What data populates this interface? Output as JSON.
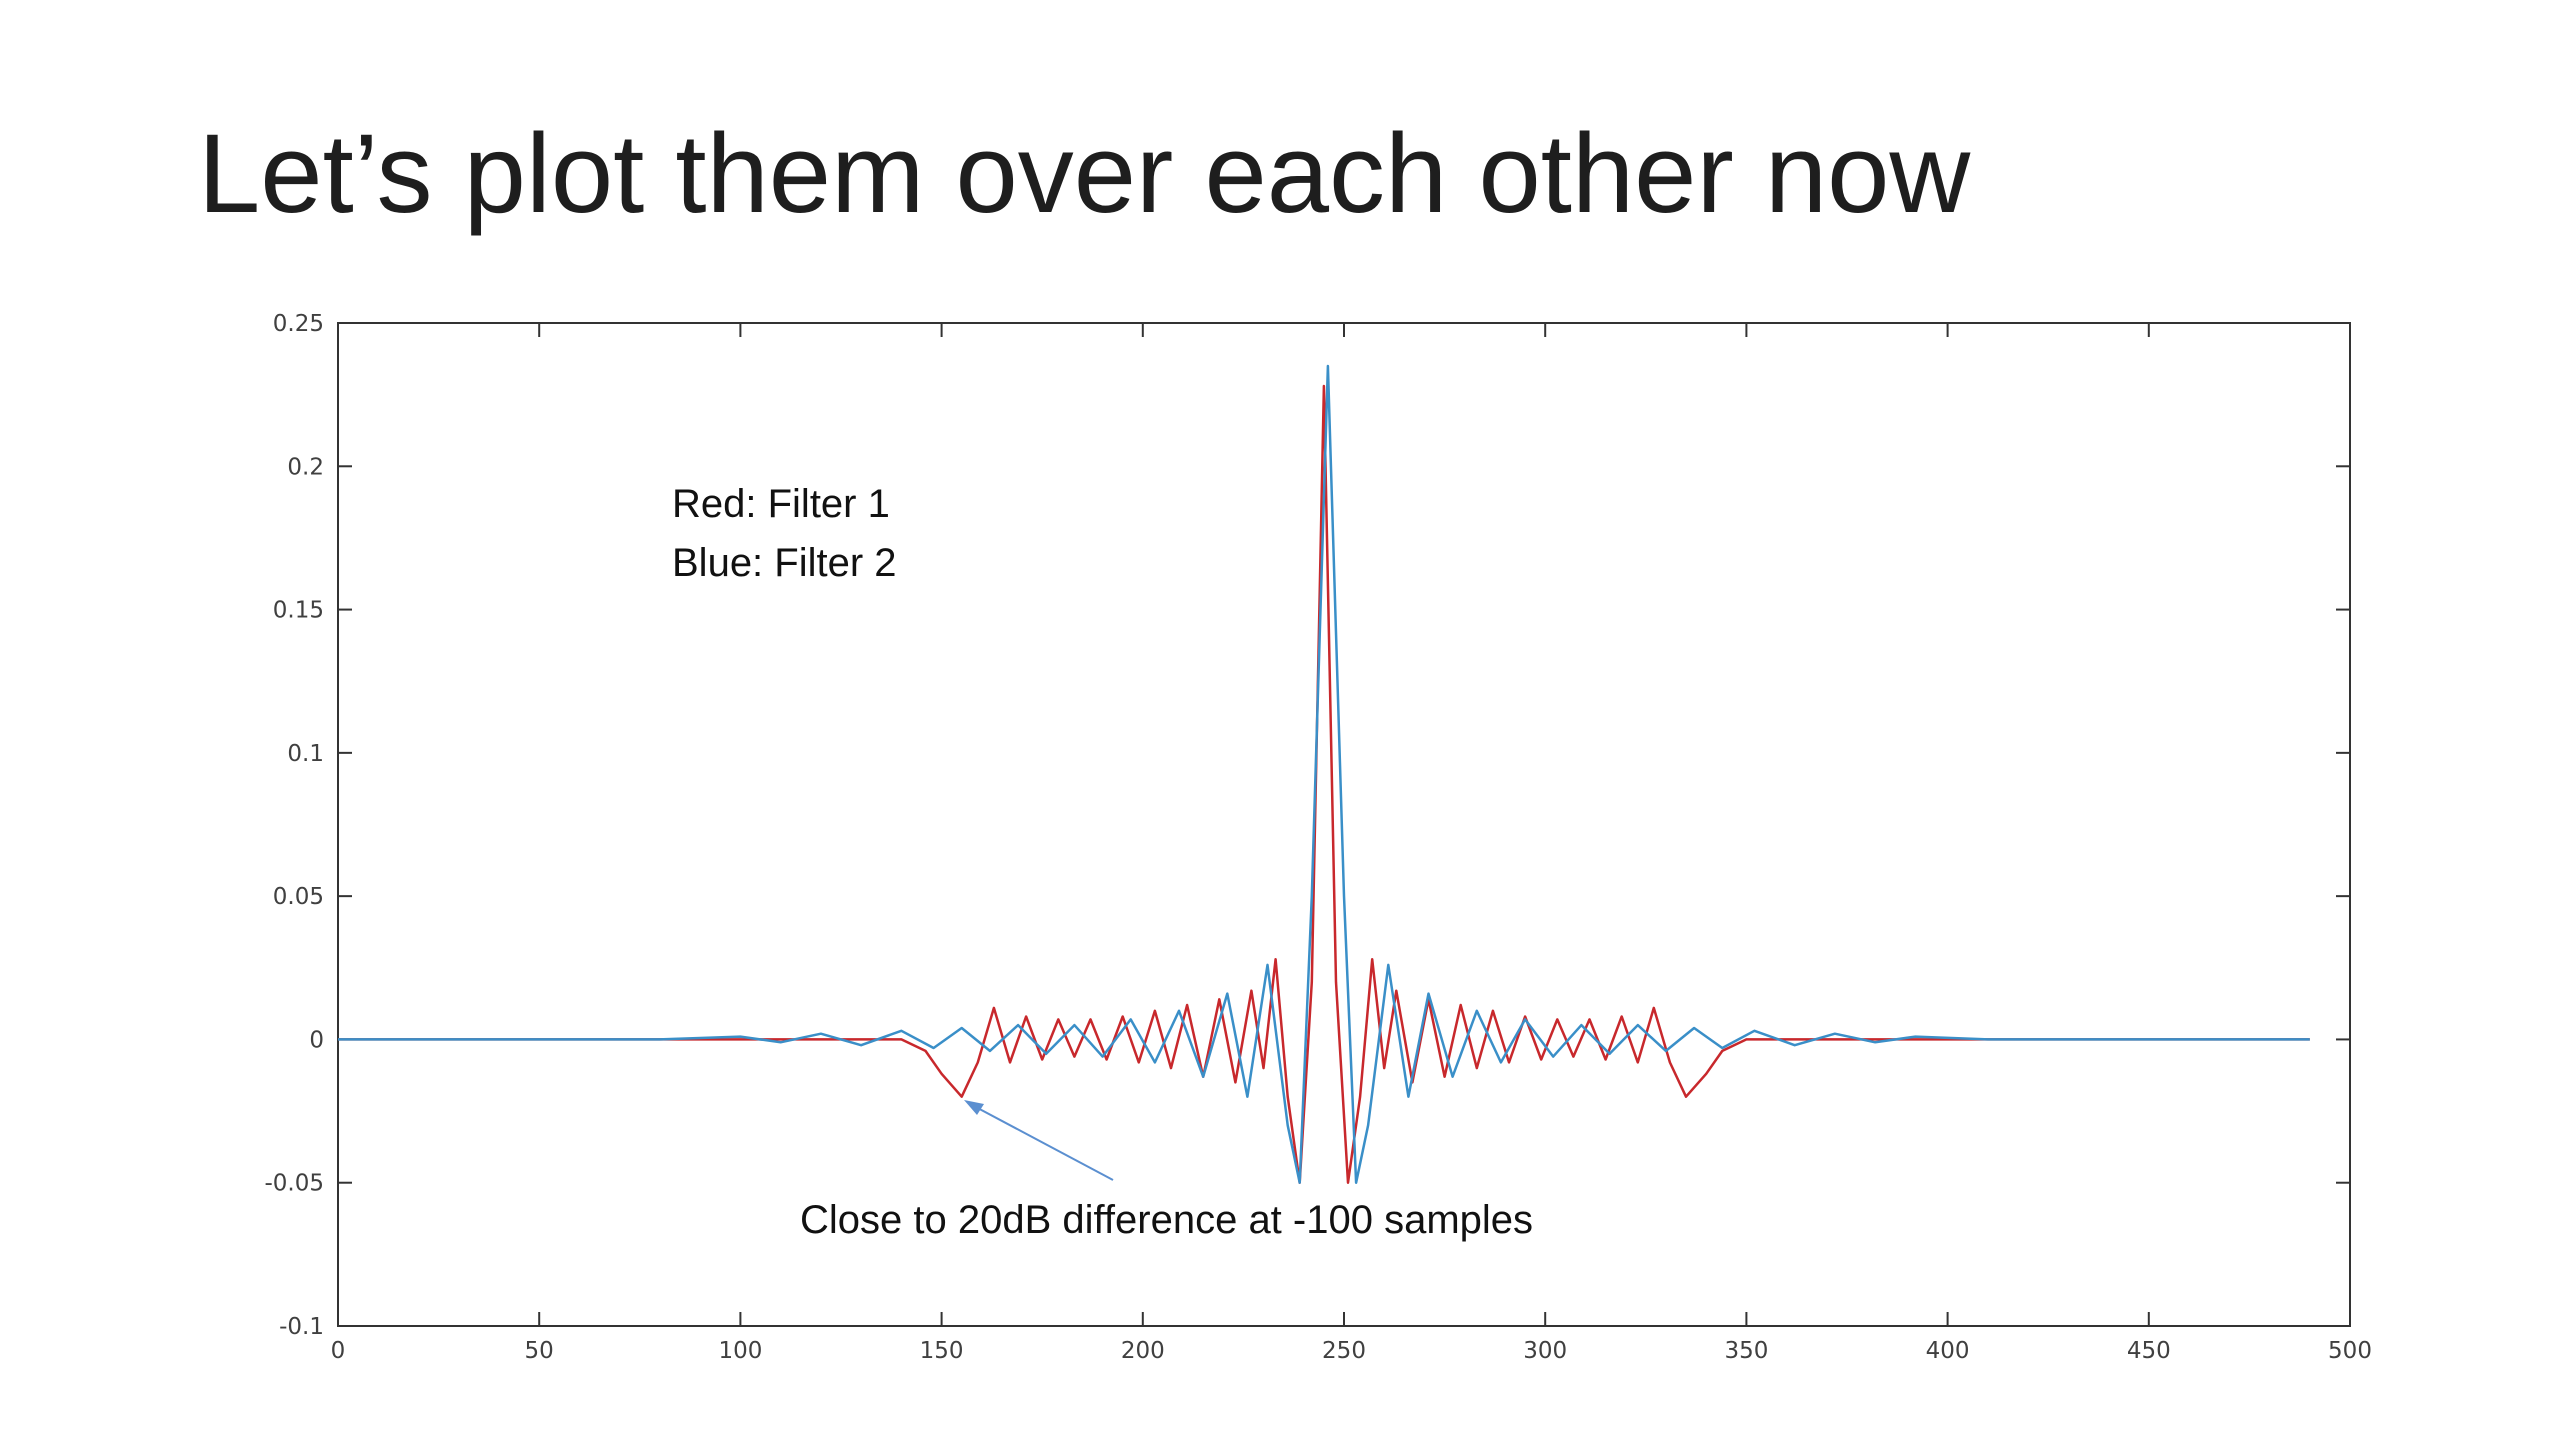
{
  "chart_data": {
    "type": "line",
    "title": "Let’s plot them over each other now",
    "annotations": [
      "Red: Filter 1",
      "Blue: Filter 2",
      "Close to 20dB difference at -100 samples"
    ],
    "xlim": [
      0,
      500
    ],
    "ylim": [
      -0.1,
      0.25
    ],
    "xticks": [
      0,
      50,
      100,
      150,
      200,
      250,
      300,
      350,
      400,
      450,
      500
    ],
    "yticks": [
      -0.1,
      -0.05,
      0,
      0.05,
      0.1,
      0.15,
      0.2,
      0.25
    ],
    "grid": false,
    "series": [
      {
        "color": "#c8282c",
        "x": [
          0,
          140,
          146,
          150,
          155,
          159,
          163,
          167,
          171,
          175,
          179,
          183,
          187,
          191,
          195,
          199,
          203,
          207,
          211,
          215,
          219,
          223,
          227,
          230,
          233,
          236,
          239,
          242,
          245,
          248,
          251,
          254,
          257,
          260,
          263,
          267,
          271,
          275,
          279,
          283,
          287,
          291,
          295,
          299,
          303,
          307,
          311,
          315,
          319,
          323,
          327,
          331,
          335,
          340,
          344,
          350,
          490
        ],
        "values": [
          0,
          0,
          -0.004,
          -0.012,
          -0.02,
          -0.008,
          0.011,
          -0.008,
          0.008,
          -0.007,
          0.007,
          -0.006,
          0.007,
          -0.007,
          0.008,
          -0.008,
          0.01,
          -0.01,
          0.012,
          -0.013,
          0.014,
          -0.015,
          0.017,
          -0.01,
          0.028,
          -0.02,
          -0.05,
          0.02,
          0.228,
          0.02,
          -0.05,
          -0.02,
          0.028,
          -0.01,
          0.017,
          -0.015,
          0.014,
          -0.013,
          0.012,
          -0.01,
          0.01,
          -0.008,
          0.008,
          -0.007,
          0.007,
          -0.006,
          0.007,
          -0.007,
          0.008,
          -0.008,
          0.011,
          -0.008,
          -0.02,
          -0.012,
          -0.004,
          0,
          0
        ]
      },
      {
        "color": "#3a8fc8",
        "x": [
          0,
          80,
          100,
          110,
          120,
          130,
          140,
          148,
          155,
          162,
          169,
          176,
          183,
          190,
          197,
          203,
          209,
          215,
          221,
          226,
          231,
          236,
          239,
          242,
          246,
          250,
          253,
          256,
          261,
          266,
          271,
          277,
          283,
          289,
          295,
          302,
          309,
          316,
          323,
          330,
          337,
          344,
          352,
          362,
          372,
          382,
          392,
          410,
          490
        ],
        "values": [
          0,
          0,
          0.001,
          -0.001,
          0.002,
          -0.002,
          0.003,
          -0.003,
          0.004,
          -0.004,
          0.005,
          -0.005,
          0.005,
          -0.006,
          0.007,
          -0.008,
          0.01,
          -0.013,
          0.016,
          -0.02,
          0.026,
          -0.03,
          -0.05,
          0.05,
          0.235,
          0.05,
          -0.05,
          -0.03,
          0.026,
          -0.02,
          0.016,
          -0.013,
          0.01,
          -0.008,
          0.007,
          -0.006,
          0.005,
          -0.005,
          0.005,
          -0.004,
          0.004,
          -0.003,
          0.003,
          -0.002,
          0.002,
          -0.001,
          0.001,
          0,
          0
        ]
      }
    ]
  }
}
